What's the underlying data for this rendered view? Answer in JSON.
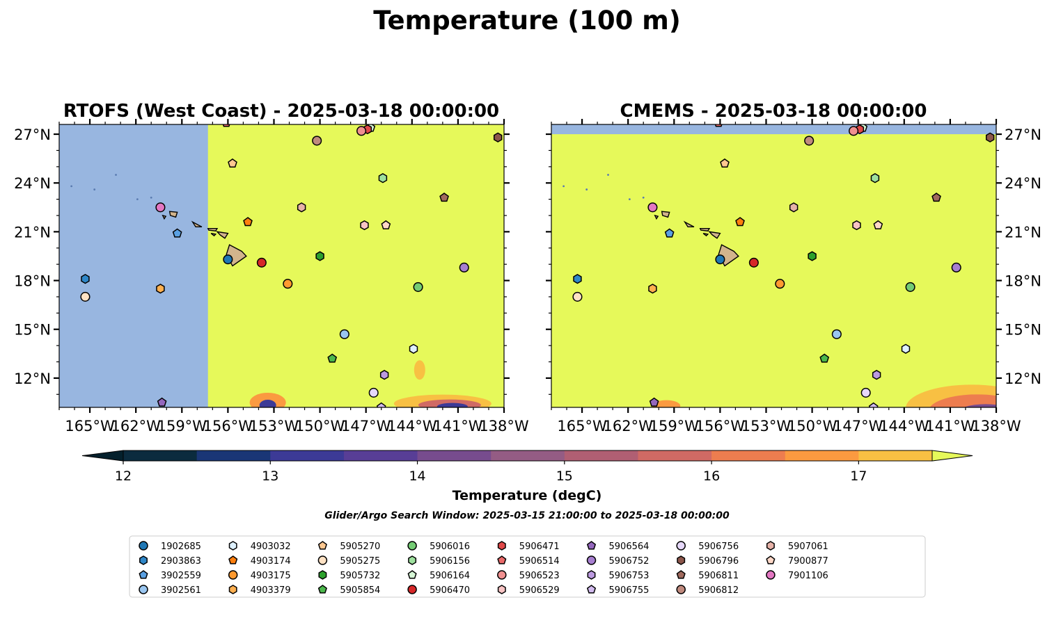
{
  "figure": {
    "suptitle": "Temperature (100 m)",
    "search_window": "Glider/Argo Search Window: 2025-03-15 21:00:00 to 2025-03-18 00:00:00"
  },
  "panels": [
    {
      "title": "RTOFS (West Coast) - 2025-03-18 00:00:00",
      "lat_label_side": "left",
      "coverage_east_of_lon": -157.3,
      "warm_field": "#e6f95a",
      "no_data": "#98b6e0"
    },
    {
      "title": "CMEMS - 2025-03-18 00:00:00",
      "lat_label_side": "right",
      "coverage_south_of_lat": 27.0,
      "warm_field": "#e6f95a",
      "no_data": "#98b6e0"
    }
  ],
  "map": {
    "lon_range": [
      -167,
      -138
    ],
    "lat_range": [
      10.2,
      27.6
    ],
    "lon_ticks": [
      -165,
      -162,
      -159,
      -156,
      -153,
      -150,
      -147,
      -144,
      -141,
      -138
    ],
    "lon_tick_labels": [
      "165°W",
      "162°W",
      "159°W",
      "156°W",
      "153°W",
      "150°W",
      "147°W",
      "144°W",
      "141°W",
      "138°W"
    ],
    "lat_ticks": [
      12,
      15,
      18,
      21,
      24,
      27
    ],
    "lat_tick_labels": [
      "12°N",
      "15°N",
      "18°N",
      "21°N",
      "24°N",
      "27°N"
    ],
    "land_color": "#d2b48c"
  },
  "colorbar": {
    "label": "Temperature (degC)",
    "min": 12,
    "max": 17.5,
    "ticks": [
      12,
      13,
      14,
      15,
      16,
      17
    ],
    "tick_labels": [
      "12",
      "13",
      "14",
      "15",
      "16",
      "17"
    ],
    "colors": [
      "#0b2b3e",
      "#1a3676",
      "#3c3a96",
      "#583e96",
      "#774c8e",
      "#945c84",
      "#b05f73",
      "#d06a64",
      "#ed7d4f",
      "#fb9a40",
      "#f8c043"
    ],
    "under_color": "#04202c",
    "over_color": "#e6f95a"
  },
  "floats": [
    {
      "id": "1902685",
      "lon": -156.0,
      "lat": 19.3,
      "marker": "circle",
      "color": "#1f77b4"
    },
    {
      "id": "2903863",
      "lon": -165.3,
      "lat": 18.1,
      "marker": "hexagon",
      "color": "#2f87c8"
    },
    {
      "id": "3902559",
      "lon": -159.3,
      "lat": 20.9,
      "marker": "pentagon",
      "color": "#5aa0e2"
    },
    {
      "id": "3902561",
      "lon": -148.4,
      "lat": 14.7,
      "marker": "circle",
      "color": "#9ac6f0"
    },
    {
      "id": "4903032",
      "lon": -143.9,
      "lat": 13.8,
      "marker": "hexagon",
      "color": "#def1ff"
    },
    {
      "id": "4903174",
      "lon": -154.7,
      "lat": 21.6,
      "marker": "pentagon",
      "color": "#ff7f0e"
    },
    {
      "id": "4903175",
      "lon": -152.1,
      "lat": 17.8,
      "marker": "circle",
      "color": "#ff9a30"
    },
    {
      "id": "4903379",
      "lon": -160.4,
      "lat": 17.5,
      "marker": "hexagon",
      "color": "#ffb050"
    },
    {
      "id": "5905270",
      "lon": -155.7,
      "lat": 25.2,
      "marker": "pentagon",
      "color": "#ffc890"
    },
    {
      "id": "5905275",
      "lon": -165.3,
      "lat": 17.0,
      "marker": "circle",
      "color": "#ffe2c4"
    },
    {
      "id": "5905732",
      "lon": -150.0,
      "lat": 19.5,
      "marker": "hexagon",
      "color": "#2ca02c"
    },
    {
      "id": "5905854",
      "lon": -149.2,
      "lat": 13.2,
      "marker": "pentagon",
      "color": "#4cb84c"
    },
    {
      "id": "5906016",
      "lon": -143.6,
      "lat": 17.6,
      "marker": "circle",
      "color": "#74cc74"
    },
    {
      "id": "5906156",
      "lon": -145.9,
      "lat": 24.3,
      "marker": "hexagon",
      "color": "#9ee09e"
    },
    {
      "id": "5906164",
      "lon": -146.7,
      "lat": 27.4,
      "marker": "pentagon",
      "color": "#d6f7d6"
    },
    {
      "id": "5906470",
      "lon": -153.8,
      "lat": 19.1,
      "marker": "circle",
      "color": "#d62728"
    },
    {
      "id": "5906471",
      "lon": -146.9,
      "lat": 27.3,
      "marker": "hexagon",
      "color": "#e04848"
    },
    {
      "id": "5906514",
      "lon": -156.1,
      "lat": 27.7,
      "marker": "pentagon",
      "color": "#ea6a6a"
    },
    {
      "id": "5906523",
      "lon": -147.3,
      "lat": 27.2,
      "marker": "circle",
      "color": "#f09090"
    },
    {
      "id": "5906529",
      "lon": -147.1,
      "lat": 21.4,
      "marker": "hexagon",
      "color": "#f8c4c4"
    },
    {
      "id": "5906564",
      "lon": -160.3,
      "lat": 10.5,
      "marker": "pentagon",
      "color": "#9467bd"
    },
    {
      "id": "5906752",
      "lon": -140.6,
      "lat": 18.8,
      "marker": "circle",
      "color": "#a77fd0"
    },
    {
      "id": "5906753",
      "lon": -145.8,
      "lat": 12.2,
      "marker": "hexagon",
      "color": "#bc9ae0"
    },
    {
      "id": "5906755",
      "lon": -146.0,
      "lat": 10.2,
      "marker": "pentagon",
      "color": "#d2bbee"
    },
    {
      "id": "5906756",
      "lon": -146.5,
      "lat": 11.1,
      "marker": "circle",
      "color": "#e6d8fa"
    },
    {
      "id": "5906796",
      "lon": -138.4,
      "lat": 26.8,
      "marker": "hexagon",
      "color": "#8c564b"
    },
    {
      "id": "5906811",
      "lon": -141.9,
      "lat": 23.1,
      "marker": "pentagon",
      "color": "#a06a5e"
    },
    {
      "id": "5906812",
      "lon": -150.2,
      "lat": 26.6,
      "marker": "circle",
      "color": "#c08a7e"
    },
    {
      "id": "5907061",
      "lon": -151.2,
      "lat": 22.5,
      "marker": "hexagon",
      "color": "#e6b2a8"
    },
    {
      "id": "7900877",
      "lon": -145.7,
      "lat": 21.4,
      "marker": "pentagon",
      "color": "#ffd8c8"
    },
    {
      "id": "7901106",
      "lon": -160.4,
      "lat": 22.5,
      "marker": "circle",
      "color": "#e377c2"
    }
  ]
}
